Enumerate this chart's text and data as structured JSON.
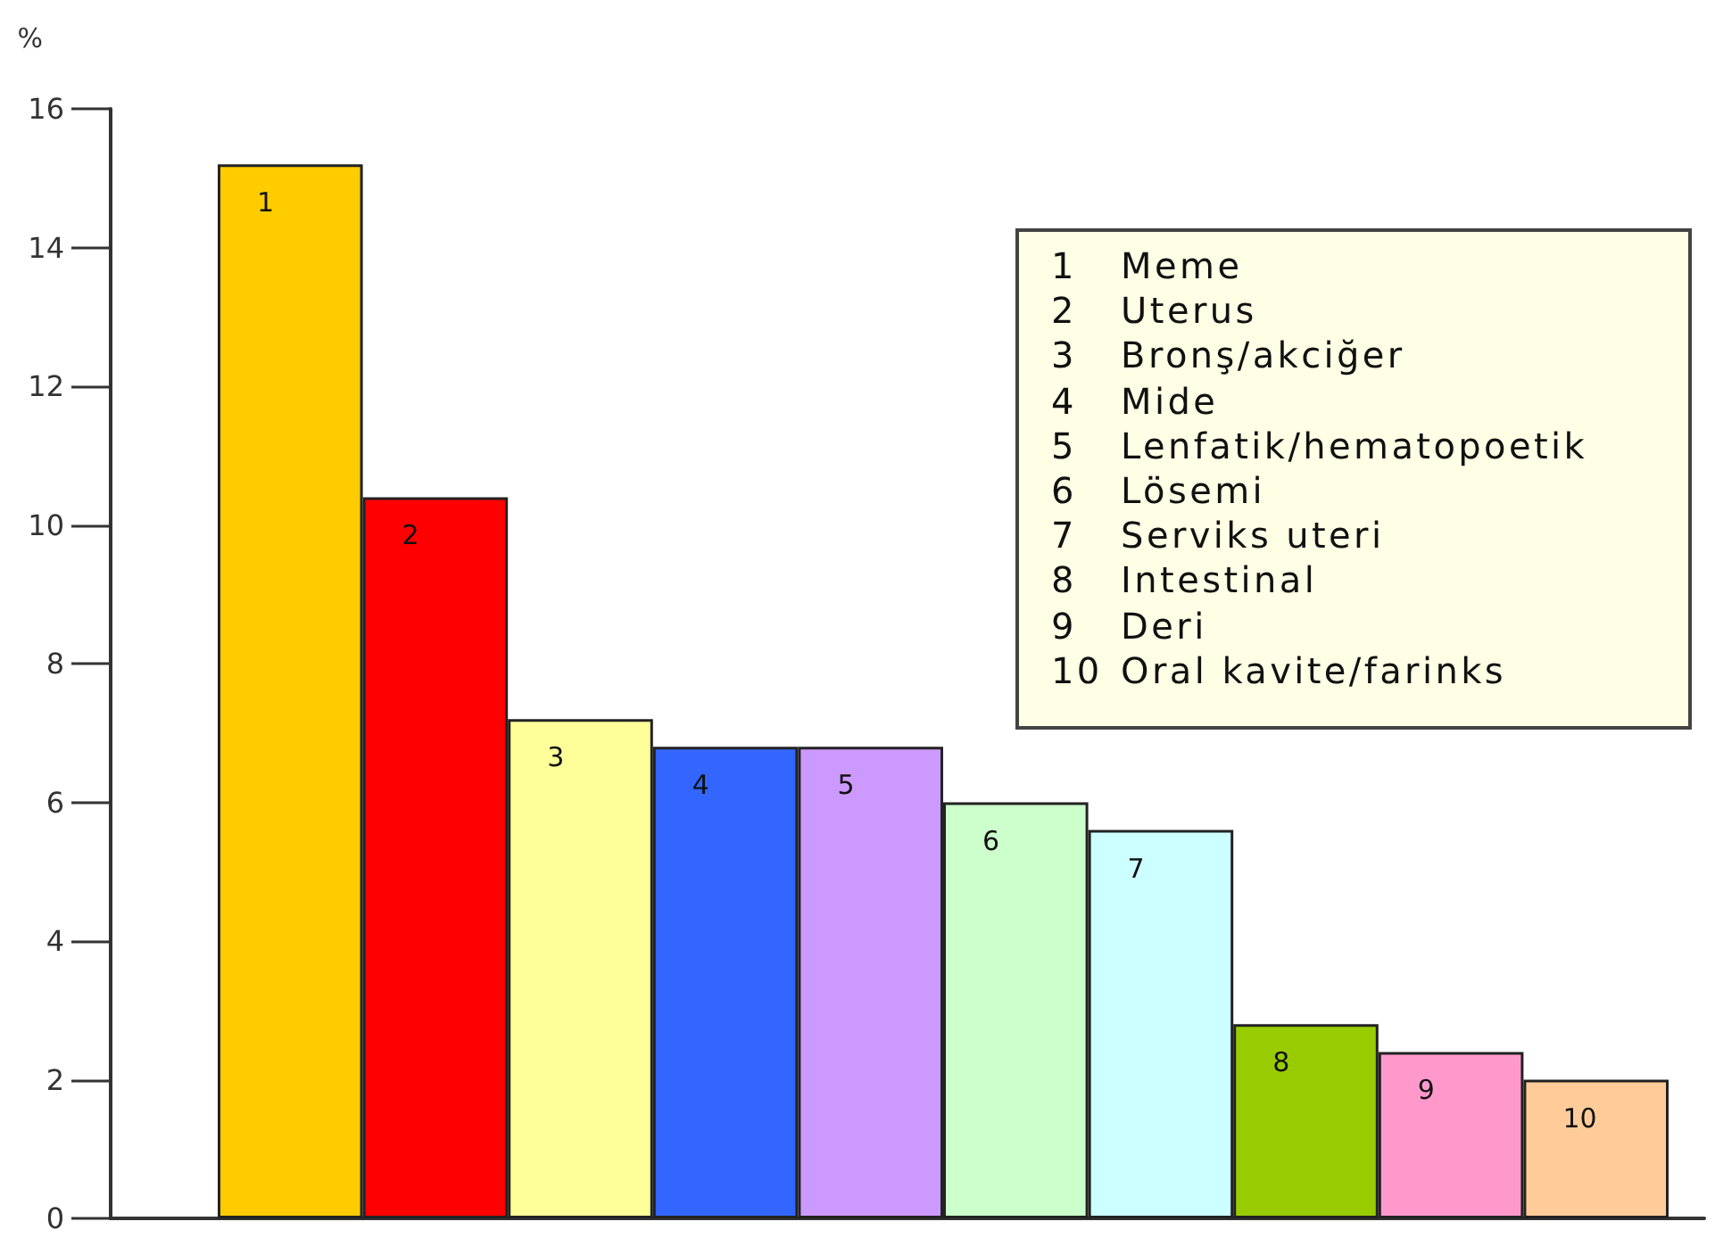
{
  "chart_data": {
    "type": "bar",
    "ylabel": "%",
    "categories": [
      "1",
      "2",
      "3",
      "4",
      "5",
      "6",
      "7",
      "8",
      "9",
      "10"
    ],
    "values": [
      15.2,
      10.4,
      7.2,
      6.8,
      6.8,
      6.0,
      5.6,
      2.8,
      2.4,
      2.0
    ],
    "colors": [
      "#ffcc00",
      "#ff0000",
      "#ffff99",
      "#3366ff",
      "#cc99ff",
      "#ccffcc",
      "#ccffff",
      "#99cc00",
      "#ff99cc",
      "#ffcc99"
    ],
    "ylim": [
      0,
      16
    ],
    "yticks": [
      0,
      2,
      4,
      6,
      8,
      10,
      12,
      14,
      16
    ],
    "grid": false,
    "annotations": [
      "1 Meme",
      "2 Uterus",
      "3 Bronş/akciğer",
      "4 Mide",
      "5 Lenfatik/hematopoetik",
      "6 Lösemi",
      "7 Serviks uteri",
      "8 Intestinal",
      "9 Deri",
      "10 Oral kavite/farinks"
    ]
  }
}
